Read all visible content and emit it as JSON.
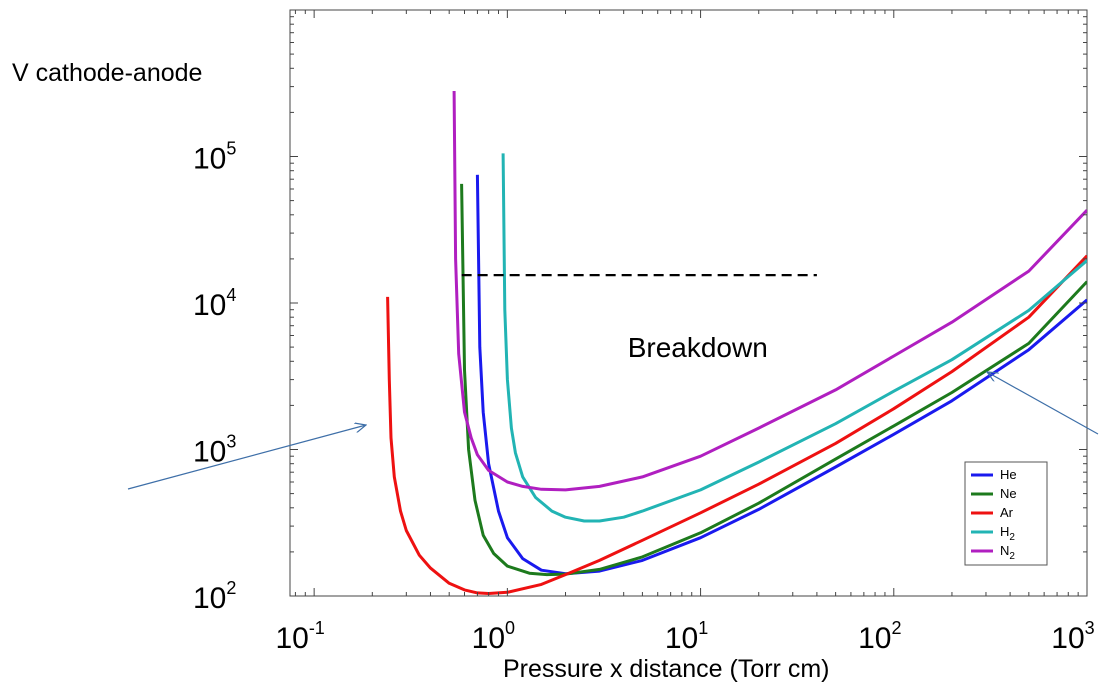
{
  "chart_data": {
    "type": "line",
    "title": "",
    "xlabel": "Pressure x distance (Torr cm)",
    "ylabel": "V cathode-anode",
    "x_scale": "log",
    "y_scale": "log",
    "xlim": [
      0.075,
      1000
    ],
    "ylim": [
      100,
      1000000
    ],
    "x_ticks": [
      {
        "base": "10",
        "exp": "-1",
        "value": 0.1
      },
      {
        "base": "10",
        "exp": "0",
        "value": 1
      },
      {
        "base": "10",
        "exp": "1",
        "value": 10
      },
      {
        "base": "10",
        "exp": "2",
        "value": 100
      },
      {
        "base": "10",
        "exp": "3",
        "value": 1000
      }
    ],
    "y_ticks": [
      {
        "base": "10",
        "exp": "2",
        "value": 100
      },
      {
        "base": "10",
        "exp": "3",
        "value": 1000
      },
      {
        "base": "10",
        "exp": "4",
        "value": 10000
      },
      {
        "base": "10",
        "exp": "5",
        "value": 100000
      }
    ],
    "grid": false,
    "legend_position": "bottom-right",
    "series": [
      {
        "name": "He",
        "label_main": "He",
        "label_sub": "",
        "color": "#1a1aee",
        "x": [
          0.7,
          0.72,
          0.75,
          0.8,
          0.9,
          1.0,
          1.2,
          1.5,
          2.0,
          3.0,
          5.0,
          10,
          20,
          50,
          100,
          200,
          500,
          1000
        ],
        "y": [
          75000,
          5000,
          1800,
          800,
          380,
          250,
          180,
          150,
          142,
          148,
          175,
          250,
          390,
          760,
          1270,
          2150,
          4800,
          10500
        ]
      },
      {
        "name": "Ne",
        "label_main": "Ne",
        "label_sub": "",
        "color": "#1d7a1d",
        "x": [
          0.58,
          0.6,
          0.63,
          0.68,
          0.75,
          0.85,
          1.0,
          1.3,
          1.6,
          2.0,
          3.0,
          5.0,
          10,
          20,
          50,
          100,
          200,
          500,
          1000
        ],
        "y": [
          65000,
          3500,
          1000,
          450,
          260,
          195,
          160,
          143,
          140,
          141,
          152,
          185,
          270,
          430,
          860,
          1450,
          2450,
          5300,
          14000
        ]
      },
      {
        "name": "Ar",
        "label_main": "Ar",
        "label_sub": "",
        "color": "#ee1111",
        "x": [
          0.24,
          0.245,
          0.25,
          0.26,
          0.28,
          0.3,
          0.35,
          0.4,
          0.5,
          0.6,
          0.7,
          0.8,
          1.0,
          1.5,
          2.0,
          3.0,
          5.0,
          10,
          20,
          50,
          100,
          200,
          500,
          1000
        ],
        "y": [
          11000,
          3000,
          1200,
          650,
          380,
          280,
          190,
          155,
          122,
          110,
          105,
          104,
          106,
          120,
          140,
          175,
          240,
          370,
          580,
          1100,
          1900,
          3400,
          8000,
          21000
        ]
      },
      {
        "name": "H2",
        "label_main": "H",
        "label_sub": "2",
        "color": "#22b4b4",
        "x": [
          0.95,
          0.97,
          1.0,
          1.05,
          1.1,
          1.2,
          1.4,
          1.7,
          2.0,
          2.5,
          3.0,
          4.0,
          5.0,
          10,
          20,
          50,
          100,
          200,
          500,
          1000
        ],
        "y": [
          105000,
          9000,
          3000,
          1400,
          950,
          650,
          470,
          380,
          345,
          325,
          325,
          345,
          380,
          530,
          820,
          1500,
          2500,
          4100,
          8900,
          19500
        ]
      },
      {
        "name": "N2",
        "label_main": "N",
        "label_sub": "2",
        "color": "#b01fc0",
        "x": [
          0.53,
          0.54,
          0.56,
          0.6,
          0.65,
          0.7,
          0.8,
          1.0,
          1.2,
          1.5,
          2.0,
          3.0,
          5.0,
          10,
          20,
          50,
          100,
          200,
          500,
          1000
        ],
        "y": [
          280000,
          20000,
          4500,
          1800,
          1200,
          920,
          720,
          600,
          560,
          535,
          530,
          560,
          650,
          900,
          1400,
          2550,
          4350,
          7400,
          16500,
          43000
        ]
      }
    ],
    "annotations": [
      {
        "text": "Breakdown",
        "x": 6,
        "y": 5000
      },
      {
        "type": "dashed-line",
        "x": [
          0.58,
          40
        ],
        "y": [
          15500,
          15500
        ],
        "color": "#000000"
      }
    ]
  }
}
